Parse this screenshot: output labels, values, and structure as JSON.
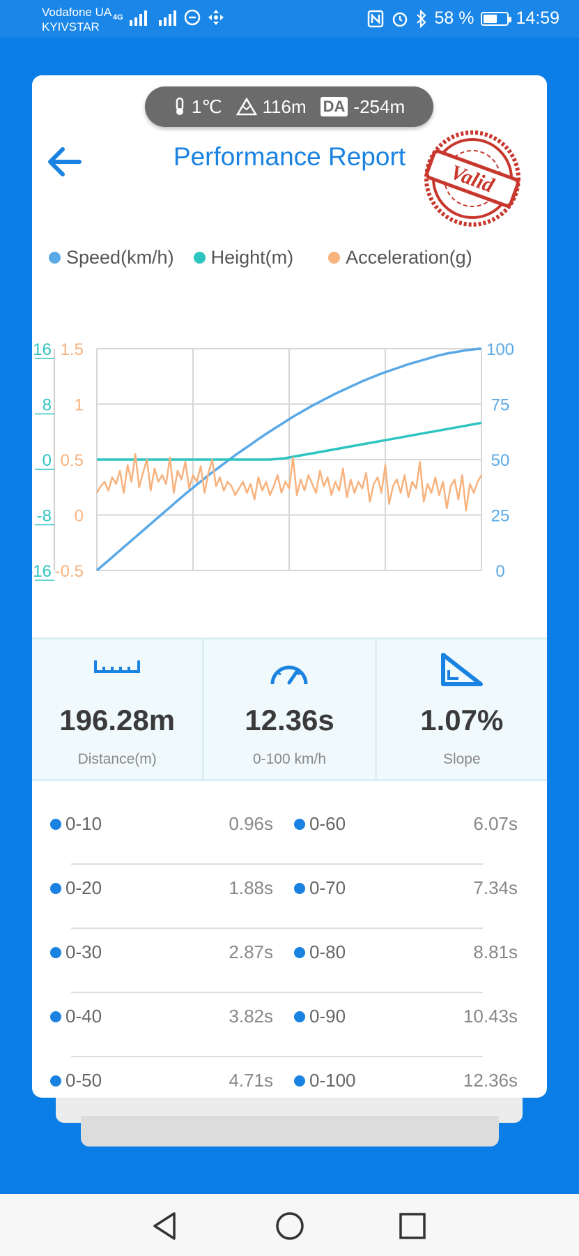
{
  "status_bar": {
    "carrier_1": "Vodafone UA",
    "carrier_2": "KYIVSTAR",
    "network": "4G",
    "battery": "58 %",
    "battery_level": 0.58,
    "time": "14:59"
  },
  "environment": {
    "temperature": "1℃",
    "altitude": "116m",
    "da_label": "DA",
    "density_altitude": "-254m"
  },
  "header": {
    "title": "Performance Report",
    "stamp_text": "Valid"
  },
  "legend": [
    {
      "label": "Speed(km/h)",
      "color": "#5aa9e6"
    },
    {
      "label": "Height(m)",
      "color": "#2ec4c0"
    },
    {
      "label": "Acceleration(g)",
      "color": "#f7b27e"
    }
  ],
  "chart_data": {
    "type": "line",
    "x_count": 101,
    "series": [
      {
        "name": "Speed(km/h)",
        "axis": "right",
        "color": "#5aa9e6",
        "values": [
          0,
          1.5,
          3,
          4.5,
          6,
          7.5,
          9,
          10.5,
          12,
          13.5,
          15,
          16.5,
          18,
          19.5,
          21,
          22.5,
          24,
          25.5,
          27,
          28.5,
          30,
          31.5,
          33,
          34.5,
          35.9,
          37.3,
          38.7,
          40.1,
          41.5,
          42.9,
          44.2,
          45.5,
          46.8,
          48.1,
          49.4,
          50.7,
          52,
          53.2,
          54.4,
          55.6,
          56.8,
          58,
          59.2,
          60.4,
          61.6,
          62.7,
          63.8,
          64.9,
          66,
          67.1,
          68.2,
          69.3,
          70.3,
          71.3,
          72.3,
          73.3,
          74.3,
          75.2,
          76.1,
          77,
          77.9,
          78.8,
          79.7,
          80.5,
          81.3,
          82.1,
          82.9,
          83.7,
          84.5,
          85.3,
          86,
          86.7,
          87.4,
          88.1,
          88.8,
          89.4,
          90,
          90.6,
          91.2,
          91.8,
          92.4,
          93,
          93.5,
          94,
          94.5,
          95,
          95.5,
          96,
          96.5,
          97,
          97.4,
          97.8,
          98.1,
          98.4,
          98.7,
          99,
          99.3,
          99.5,
          99.7,
          99.9,
          100
        ]
      },
      {
        "name": "Height(m)",
        "axis": "left_outer",
        "color": "#2ec4c0",
        "values": [
          0,
          0,
          0,
          0,
          0,
          0,
          0,
          0,
          0,
          0,
          0,
          0,
          0,
          0,
          0,
          0,
          0,
          0,
          0,
          0,
          0,
          0,
          0,
          0,
          0,
          0,
          0,
          0,
          0,
          0,
          0,
          0,
          0,
          0,
          0,
          0,
          0,
          0,
          0,
          0,
          0,
          0,
          0,
          0,
          0,
          0,
          0.05,
          0.1,
          0.15,
          0.2,
          0.3,
          0.4,
          0.5,
          0.6,
          0.7,
          0.8,
          0.9,
          1.0,
          1.1,
          1.2,
          1.3,
          1.4,
          1.5,
          1.6,
          1.7,
          1.8,
          1.9,
          2.0,
          2.1,
          2.2,
          2.3,
          2.4,
          2.5,
          2.6,
          2.7,
          2.8,
          2.9,
          3.0,
          3.1,
          3.2,
          3.3,
          3.4,
          3.5,
          3.6,
          3.7,
          3.8,
          3.9,
          4.0,
          4.1,
          4.2,
          4.3,
          4.4,
          4.5,
          4.6,
          4.7,
          4.8,
          4.9,
          5.0,
          5.1,
          5.2,
          5.3
        ]
      },
      {
        "name": "Acceleration(g)",
        "axis": "left_inner",
        "color": "#f7b27e",
        "values": [
          0.2,
          0.26,
          0.3,
          0.22,
          0.34,
          0.28,
          0.4,
          0.2,
          0.45,
          0.3,
          0.55,
          0.25,
          0.38,
          0.5,
          0.22,
          0.42,
          0.3,
          0.36,
          0.28,
          0.52,
          0.2,
          0.4,
          0.32,
          0.48,
          0.24,
          0.36,
          0.3,
          0.44,
          0.2,
          0.38,
          0.5,
          0.26,
          0.34,
          0.22,
          0.3,
          0.26,
          0.18,
          0.24,
          0.3,
          0.2,
          0.28,
          0.14,
          0.34,
          0.22,
          0.3,
          0.18,
          0.26,
          0.36,
          0.2,
          0.3,
          0.24,
          0.52,
          0.18,
          0.32,
          0.22,
          0.36,
          0.28,
          0.2,
          0.4,
          0.26,
          0.34,
          0.18,
          0.3,
          0.22,
          0.42,
          0.16,
          0.32,
          0.2,
          0.3,
          0.24,
          0.38,
          0.12,
          0.28,
          0.34,
          0.2,
          0.45,
          0.1,
          0.26,
          0.32,
          0.2,
          0.36,
          0.16,
          0.3,
          0.24,
          0.48,
          0.12,
          0.28,
          0.2,
          0.34,
          0.18,
          0.3,
          0.06,
          0.26,
          0.32,
          0.14,
          0.36,
          0.04,
          0.28,
          0.2,
          0.3,
          0.36
        ]
      }
    ],
    "axes": {
      "right": {
        "min": 0,
        "max": 100,
        "ticks": [
          "0",
          "25",
          "50",
          "75",
          "100"
        ],
        "color": "#5aa9e6"
      },
      "left_outer": {
        "min": -16,
        "max": 16,
        "ticks": [
          "-16",
          "-8",
          "0",
          "8",
          "16"
        ],
        "color": "#2ec4c0"
      },
      "left_inner": {
        "min": -0.5,
        "max": 1.5,
        "ticks": [
          "-0.5",
          "0",
          "0.5",
          "1",
          "1.5"
        ],
        "color": "#f7b27e"
      }
    },
    "grid": true
  },
  "stats": {
    "distance": {
      "value": "196.28m",
      "label": "Distance(m)"
    },
    "time": {
      "value": "12.36s",
      "label": "0-100 km/h"
    },
    "slope": {
      "value": "1.07%",
      "label": "Slope"
    }
  },
  "splits": [
    {
      "left_label": "0-10",
      "left_time": "0.96s",
      "right_label": "0-60",
      "right_time": "6.07s"
    },
    {
      "left_label": "0-20",
      "left_time": "1.88s",
      "right_label": "0-70",
      "right_time": "7.34s"
    },
    {
      "left_label": "0-30",
      "left_time": "2.87s",
      "right_label": "0-80",
      "right_time": "8.81s"
    },
    {
      "left_label": "0-40",
      "left_time": "3.82s",
      "right_label": "0-90",
      "right_time": "10.43s"
    },
    {
      "left_label": "0-50",
      "left_time": "4.71s",
      "right_label": "0-100",
      "right_time": "12.36s"
    }
  ]
}
